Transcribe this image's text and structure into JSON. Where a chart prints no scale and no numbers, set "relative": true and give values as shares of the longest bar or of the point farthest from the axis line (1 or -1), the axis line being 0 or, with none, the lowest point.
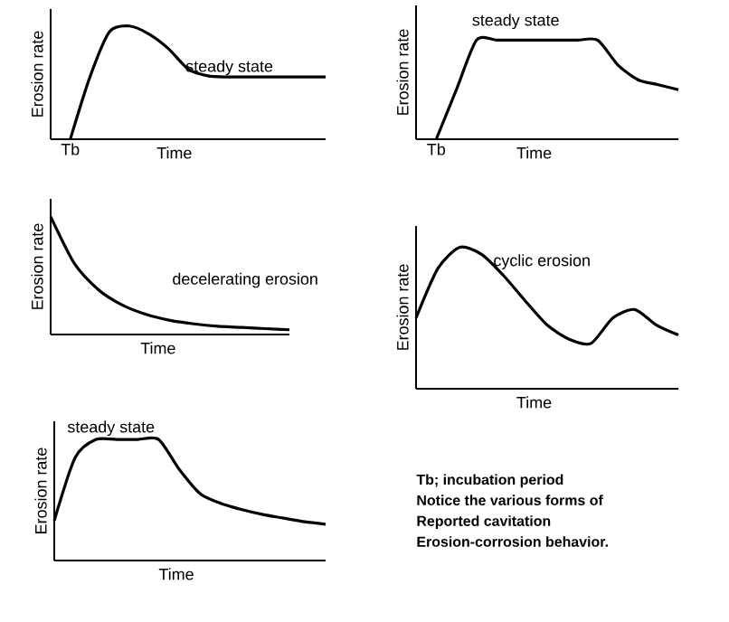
{
  "chart_data": [
    {
      "type": "line",
      "relative": true,
      "ylabel": "Erosion rate",
      "xlabel": "Time",
      "categories": [
        null,
        null,
        null,
        null,
        null,
        null,
        null,
        null,
        null,
        null,
        null,
        null,
        null,
        null,
        null
      ],
      "color": "#000000",
      "values": [
        null,
        0,
        0.55,
        0.95,
        1.0,
        0.93,
        0.8,
        0.62,
        0.56,
        0.55,
        0.55,
        0.55,
        0.55,
        0.55,
        0.55
      ],
      "annotations": [
        {
          "text": "Tb",
          "y": 0
        },
        "steady state"
      ]
    },
    {
      "type": "line",
      "relative": true,
      "ylabel": "Erosion rate",
      "xlabel": "Time",
      "categories": [
        null,
        null,
        null,
        null,
        null,
        null,
        null,
        null,
        null,
        null,
        null,
        null,
        null,
        null
      ],
      "color": "#000000",
      "values": [
        null,
        0,
        0.5,
        1.0,
        1.0,
        1.0,
        1.0,
        1.0,
        1.0,
        1.0,
        0.75,
        0.6,
        0.55,
        0.5
      ],
      "annotations": [
        {
          "text": "Tb",
          "y": 0
        },
        "steady state"
      ]
    },
    {
      "type": "line",
      "relative": true,
      "ylabel": "Erosion rate",
      "xlabel": "Time",
      "categories": [
        null,
        null,
        null,
        null,
        null,
        null,
        null,
        null,
        null,
        null,
        null
      ],
      "color": "#000000",
      "values": [
        1.0,
        0.6,
        0.38,
        0.25,
        0.17,
        0.12,
        0.09,
        0.07,
        0.06,
        0.05,
        0.04
      ],
      "annotations": [
        "decelerating erosion"
      ]
    },
    {
      "type": "line",
      "relative": true,
      "ylabel": "Erosion rate",
      "xlabel": "Time",
      "categories": [
        null,
        null,
        null,
        null,
        null,
        null,
        null,
        null,
        null,
        null,
        null,
        null,
        null
      ],
      "color": "#000000",
      "values": [
        0.5,
        0.85,
        1.0,
        0.95,
        0.8,
        0.62,
        0.45,
        0.35,
        0.32,
        0.5,
        0.56,
        0.45,
        0.38
      ],
      "annotations": [
        "cyclic erosion"
      ]
    },
    {
      "type": "line",
      "relative": true,
      "ylabel": "Erosion rate",
      "xlabel": "Time",
      "categories": [
        null,
        null,
        null,
        null,
        null,
        null,
        null,
        null,
        null,
        null,
        null,
        null,
        null,
        null
      ],
      "color": "#000000",
      "values": [
        0.33,
        0.85,
        1.0,
        1.0,
        1.0,
        1.0,
        0.75,
        0.55,
        0.47,
        0.42,
        0.38,
        0.35,
        0.32,
        0.3
      ],
      "annotations": [
        "steady state"
      ]
    },
    {
      "type": "other",
      "annotations": [
        "Tb; incubation period",
        "Notice the various forms of",
        "Reported cavitation",
        "Erosion-corrosion behavior."
      ]
    }
  ]
}
